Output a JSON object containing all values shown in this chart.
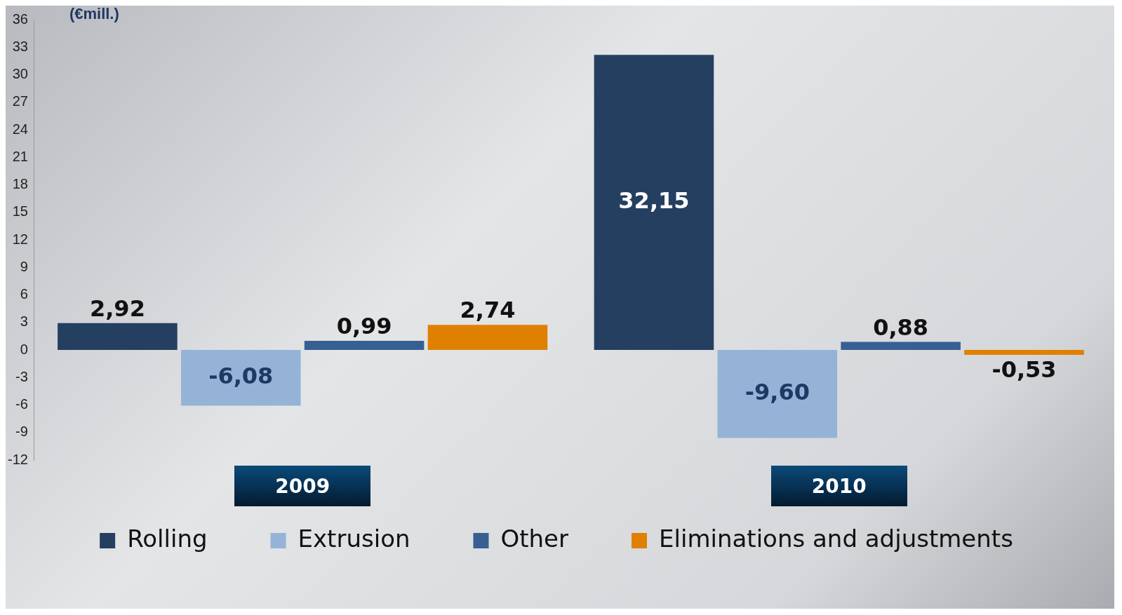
{
  "chart_data": {
    "type": "bar",
    "ylabel": "(€mill.)",
    "categories": [
      "2009",
      "2010"
    ],
    "series": [
      {
        "name": "Rolling",
        "color": "#243f60",
        "values": [
          2.92,
          32.15
        ],
        "value_labels": [
          "2,92",
          "32,15"
        ]
      },
      {
        "name": "Extrusion",
        "color": "#95b3d7",
        "values": [
          -6.08,
          -9.6
        ],
        "value_labels": [
          "-6,08",
          "-9,60"
        ]
      },
      {
        "name": "Other",
        "color": "#366092",
        "values": [
          0.99,
          0.88
        ],
        "value_labels": [
          "0,99",
          "0,88"
        ]
      },
      {
        "name": "Eliminations and adjustments",
        "color": "#e08000",
        "values": [
          2.74,
          -0.53
        ],
        "value_labels": [
          "2,74",
          "-0,53"
        ]
      }
    ],
    "ylim": [
      -12,
      36
    ],
    "yticks": [
      -12,
      -9,
      -6,
      -3,
      0,
      3,
      6,
      9,
      12,
      15,
      18,
      21,
      24,
      27,
      30,
      33,
      36
    ],
    "grid": false,
    "legend": "bottom"
  }
}
